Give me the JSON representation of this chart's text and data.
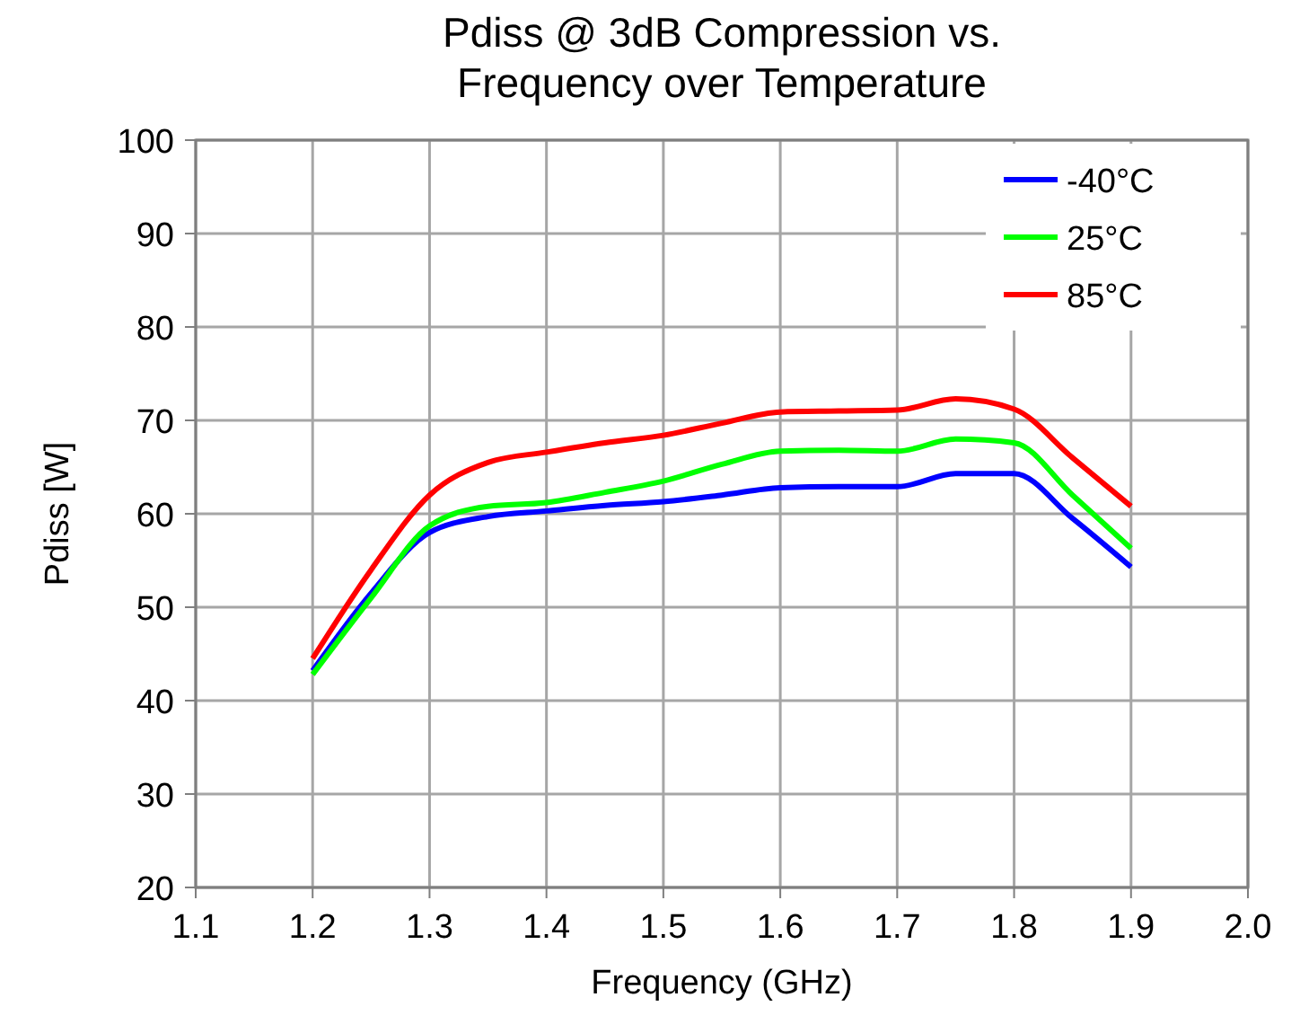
{
  "chart_data": {
    "type": "line",
    "title": "Pdiss @ 3dB Compression vs.\nFrequency over Temperature",
    "xlabel": "Frequency (GHz)",
    "ylabel": "Pdiss [W]",
    "x": [
      1.2,
      1.25,
      1.3,
      1.35,
      1.4,
      1.45,
      1.5,
      1.55,
      1.6,
      1.65,
      1.7,
      1.75,
      1.8,
      1.85,
      1.9
    ],
    "series": [
      {
        "name": "-40°C",
        "color": "#0000ff",
        "values": [
          43.2,
          51.5,
          58,
          59.7,
          60.3,
          60.9,
          61.3,
          62,
          62.8,
          62.9,
          62.9,
          64.3,
          64.3,
          59.5,
          54.3
        ]
      },
      {
        "name": "25°C",
        "color": "#00ff00",
        "values": [
          42.8,
          51,
          58.7,
          60.8,
          61.2,
          62.3,
          63.5,
          65.3,
          66.7,
          66.8,
          66.7,
          68,
          67.6,
          62,
          56.3
        ]
      },
      {
        "name": "85°C",
        "color": "#ff0000",
        "values": [
          44.5,
          54,
          62,
          65.5,
          66.6,
          67.6,
          68.4,
          69.7,
          70.9,
          71,
          71.1,
          72.3,
          71.2,
          66,
          60.8
        ]
      }
    ],
    "xlim": [
      1.1,
      2.0
    ],
    "xticks": [
      {
        "value": 1.1,
        "label": "1.1"
      },
      {
        "value": 1.2,
        "label": "1.2"
      },
      {
        "value": 1.3,
        "label": "1.3"
      },
      {
        "value": 1.4,
        "label": "1.4"
      },
      {
        "value": 1.5,
        "label": "1.5"
      },
      {
        "value": 1.6,
        "label": "1.6"
      },
      {
        "value": 1.7,
        "label": "1.7"
      },
      {
        "value": 1.8,
        "label": "1.8"
      },
      {
        "value": 1.9,
        "label": "1.9"
      },
      {
        "value": 2.0,
        "label": "2.0"
      }
    ],
    "ylim": [
      20,
      100
    ],
    "yticks": [
      20,
      30,
      40,
      50,
      60,
      70,
      80,
      90,
      100
    ],
    "grid": true,
    "legend": "top right",
    "marker": "none",
    "line_style": "solid"
  }
}
